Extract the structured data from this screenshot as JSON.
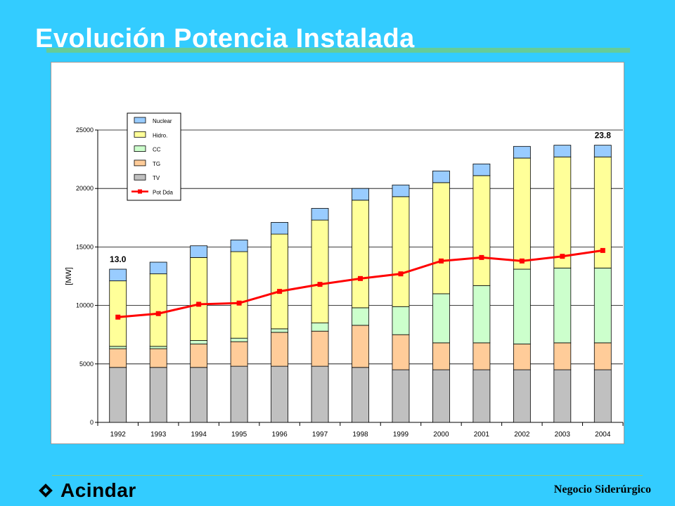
{
  "page": {
    "title": "Evolución Potencia Instalada",
    "footer_text": "Negocio Siderúrgico",
    "logo_text": "Acindar"
  },
  "colors": {
    "background": "#33CCFF",
    "title_bar": "#66CC99",
    "TV": "#C0C0C0",
    "TG": "#FFCC99",
    "CC": "#CCFFCC",
    "Hidro": "#FFFF99",
    "Nuclear": "#99CCFF",
    "PotDda": "#FF0000"
  },
  "chart_data": {
    "type": "bar",
    "stacked": true,
    "categories": [
      "1992",
      "1993",
      "1994",
      "1995",
      "1996",
      "1997",
      "1998",
      "1999",
      "2000",
      "2001",
      "2002",
      "2003",
      "2004"
    ],
    "ylabel": "[MW]",
    "ylim": [
      0,
      25000
    ],
    "yticks": [
      0,
      5000,
      10000,
      15000,
      20000,
      25000
    ],
    "ytick_labels": [
      "0",
      "5000",
      "10000",
      "15000",
      "20000",
      "25000"
    ],
    "grid": true,
    "legend_position": "top-left",
    "series": [
      {
        "name": "TV",
        "values": [
          4700,
          4700,
          4700,
          4800,
          4800,
          4800,
          4700,
          4500,
          4500,
          4500,
          4500,
          4500,
          4500
        ]
      },
      {
        "name": "TG",
        "values": [
          1600,
          1600,
          2000,
          2100,
          2900,
          3000,
          3600,
          3000,
          2300,
          2300,
          2200,
          2300,
          2300
        ]
      },
      {
        "name": "CC",
        "values": [
          200,
          200,
          300,
          300,
          300,
          700,
          1500,
          2400,
          4200,
          4900,
          6400,
          6400,
          6400
        ]
      },
      {
        "name": "Hidro.",
        "values": [
          5600,
          6200,
          7100,
          7400,
          8100,
          8800,
          9200,
          9400,
          9500,
          9400,
          9500,
          9500,
          9500
        ]
      },
      {
        "name": "Nuclear",
        "values": [
          1000,
          1000,
          1000,
          1000,
          1000,
          1000,
          1000,
          1000,
          1000,
          1000,
          1000,
          1000,
          1000
        ]
      }
    ],
    "line_series": {
      "name": "Pot Dda",
      "values": [
        9000,
        9300,
        10100,
        10200,
        11200,
        11800,
        12300,
        12700,
        13800,
        14100,
        13800,
        14200,
        14700
      ]
    },
    "annotations": [
      {
        "text": "13.0",
        "category": "1992"
      },
      {
        "text": "23.8",
        "category": "2004"
      }
    ]
  }
}
